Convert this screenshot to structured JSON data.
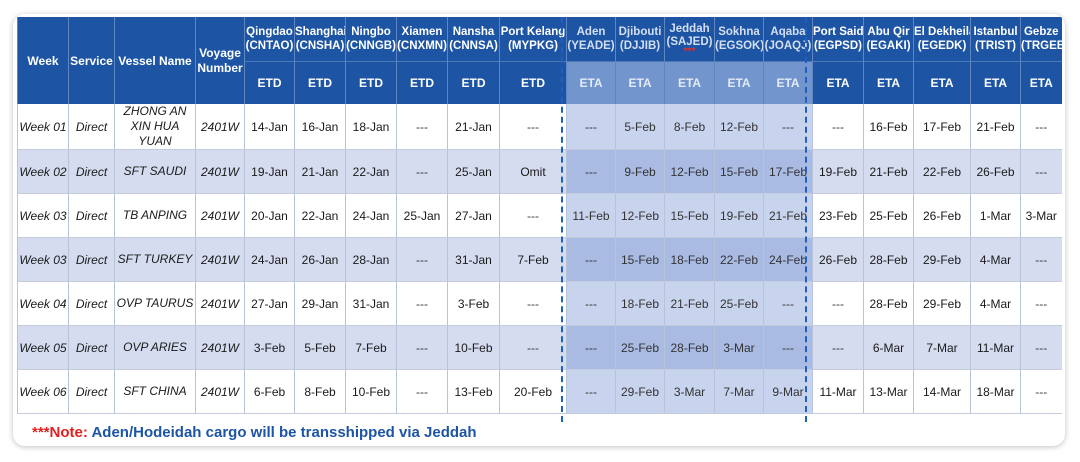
{
  "table": {
    "fixed_headers": [
      "Week",
      "Service",
      "Vessel Name",
      "Voyage Number"
    ],
    "ports": [
      {
        "name": "Qingdao",
        "code": "(CNTAO)",
        "type": "ETD",
        "highlight": false
      },
      {
        "name": "Shanghai",
        "code": "(CNSHA)",
        "type": "ETD",
        "highlight": false
      },
      {
        "name": "Ningbo",
        "code": "(CNNGB)",
        "type": "ETD",
        "highlight": false
      },
      {
        "name": "Xiamen",
        "code": "(CNXMN)",
        "type": "ETD",
        "highlight": false
      },
      {
        "name": "Nansha",
        "code": "(CNNSA)",
        "type": "ETD",
        "highlight": false
      },
      {
        "name": "Port Kelang",
        "code": "(MYPKG)",
        "type": "ETD",
        "highlight": false
      },
      {
        "name": "Aden",
        "code": "(YEADE)",
        "type": "ETA",
        "highlight": true
      },
      {
        "name": "Djibouti",
        "code": "(DJJIB)",
        "type": "ETA",
        "highlight": true
      },
      {
        "name": "Jeddah",
        "code": "(SAJED)",
        "type": "ETA",
        "highlight": true,
        "marker": "***"
      },
      {
        "name": "Sokhna",
        "code": "(EGSOK)",
        "type": "ETA",
        "highlight": true
      },
      {
        "name": "Aqaba",
        "code": "(JOAQJ)",
        "type": "ETA",
        "highlight": true
      },
      {
        "name": "Port Said",
        "code": "(EGPSD)",
        "type": "ETA",
        "highlight": false
      },
      {
        "name": "Abu Qir",
        "code": "(EGAKI)",
        "type": "ETA",
        "highlight": false
      },
      {
        "name": "El Dekheila",
        "code": "(EGEDK)",
        "type": "ETA",
        "highlight": false
      },
      {
        "name": "Istanbul",
        "code": "(TRIST)",
        "type": "ETA",
        "highlight": false
      },
      {
        "name": "Gebze",
        "code": "(TRGEB)",
        "type": "ETA",
        "highlight": false
      }
    ],
    "rows": [
      {
        "week": "Week 01",
        "service": "Direct",
        "vessel": "ZHONG AN XIN HUA YUAN",
        "voyage": "2401W",
        "dates": [
          "14-Jan",
          "16-Jan",
          "18-Jan",
          "---",
          "21-Jan",
          "---",
          "---",
          "5-Feb",
          "8-Feb",
          "12-Feb",
          "---",
          "---",
          "16-Feb",
          "17-Feb",
          "21-Feb",
          "---"
        ]
      },
      {
        "week": "Week 02",
        "service": "Direct",
        "vessel": "SFT SAUDI",
        "voyage": "2401W",
        "dates": [
          "19-Jan",
          "21-Jan",
          "22-Jan",
          "---",
          "25-Jan",
          "Omit",
          "---",
          "9-Feb",
          "12-Feb",
          "15-Feb",
          "17-Feb",
          "19-Feb",
          "21-Feb",
          "22-Feb",
          "26-Feb",
          "---"
        ]
      },
      {
        "week": "Week 03",
        "service": "Direct",
        "vessel": "TB ANPING",
        "voyage": "2401W",
        "dates": [
          "20-Jan",
          "22-Jan",
          "24-Jan",
          "25-Jan",
          "27-Jan",
          "---",
          "11-Feb",
          "12-Feb",
          "15-Feb",
          "19-Feb",
          "21-Feb",
          "23-Feb",
          "25-Feb",
          "26-Feb",
          "1-Mar",
          "3-Mar"
        ]
      },
      {
        "week": "Week 03",
        "service": "Direct",
        "vessel": "SFT TURKEY",
        "voyage": "2401W",
        "dates": [
          "24-Jan",
          "26-Jan",
          "28-Jan",
          "---",
          "31-Jan",
          "7-Feb",
          "---",
          "15-Feb",
          "18-Feb",
          "22-Feb",
          "24-Feb",
          "26-Feb",
          "28-Feb",
          "29-Feb",
          "4-Mar",
          "---"
        ]
      },
      {
        "week": "Week 04",
        "service": "Direct",
        "vessel": "OVP TAURUS",
        "voyage": "2401W",
        "dates": [
          "27-Jan",
          "29-Jan",
          "31-Jan",
          "---",
          "3-Feb",
          "---",
          "---",
          "18-Feb",
          "21-Feb",
          "25-Feb",
          "---",
          "---",
          "28-Feb",
          "29-Feb",
          "4-Mar",
          "---"
        ]
      },
      {
        "week": "Week 05",
        "service": "Direct",
        "vessel": "OVP ARIES",
        "voyage": "2401W",
        "dates": [
          "3-Feb",
          "5-Feb",
          "7-Feb",
          "---",
          "10-Feb",
          "---",
          "---",
          "25-Feb",
          "28-Feb",
          "3-Mar",
          "---",
          "---",
          "6-Mar",
          "7-Mar",
          "11-Mar",
          "---"
        ]
      },
      {
        "week": "Week 06",
        "service": "Direct",
        "vessel": "SFT CHINA",
        "voyage": "2401W",
        "dates": [
          "6-Feb",
          "8-Feb",
          "10-Feb",
          "---",
          "13-Feb",
          "20-Feb",
          "---",
          "29-Feb",
          "3-Mar",
          "7-Mar",
          "9-Mar",
          "11-Mar",
          "13-Mar",
          "14-Mar",
          "18-Mar",
          "---"
        ]
      }
    ]
  },
  "note": {
    "prefix": "***Note:",
    "text": "Aden/Hodeidah cargo will be transshipped via Jeddah"
  },
  "colors": {
    "header_bg": "#1d55a4",
    "highlight_header_bg": "#6b8fca",
    "row_alt_bg": "#d5dcf0",
    "highlight_cell_bg": "#c8d4ee",
    "dashed_border": "#1f5fc0",
    "note_red": "#e02020",
    "note_blue": "#1d55a4"
  }
}
